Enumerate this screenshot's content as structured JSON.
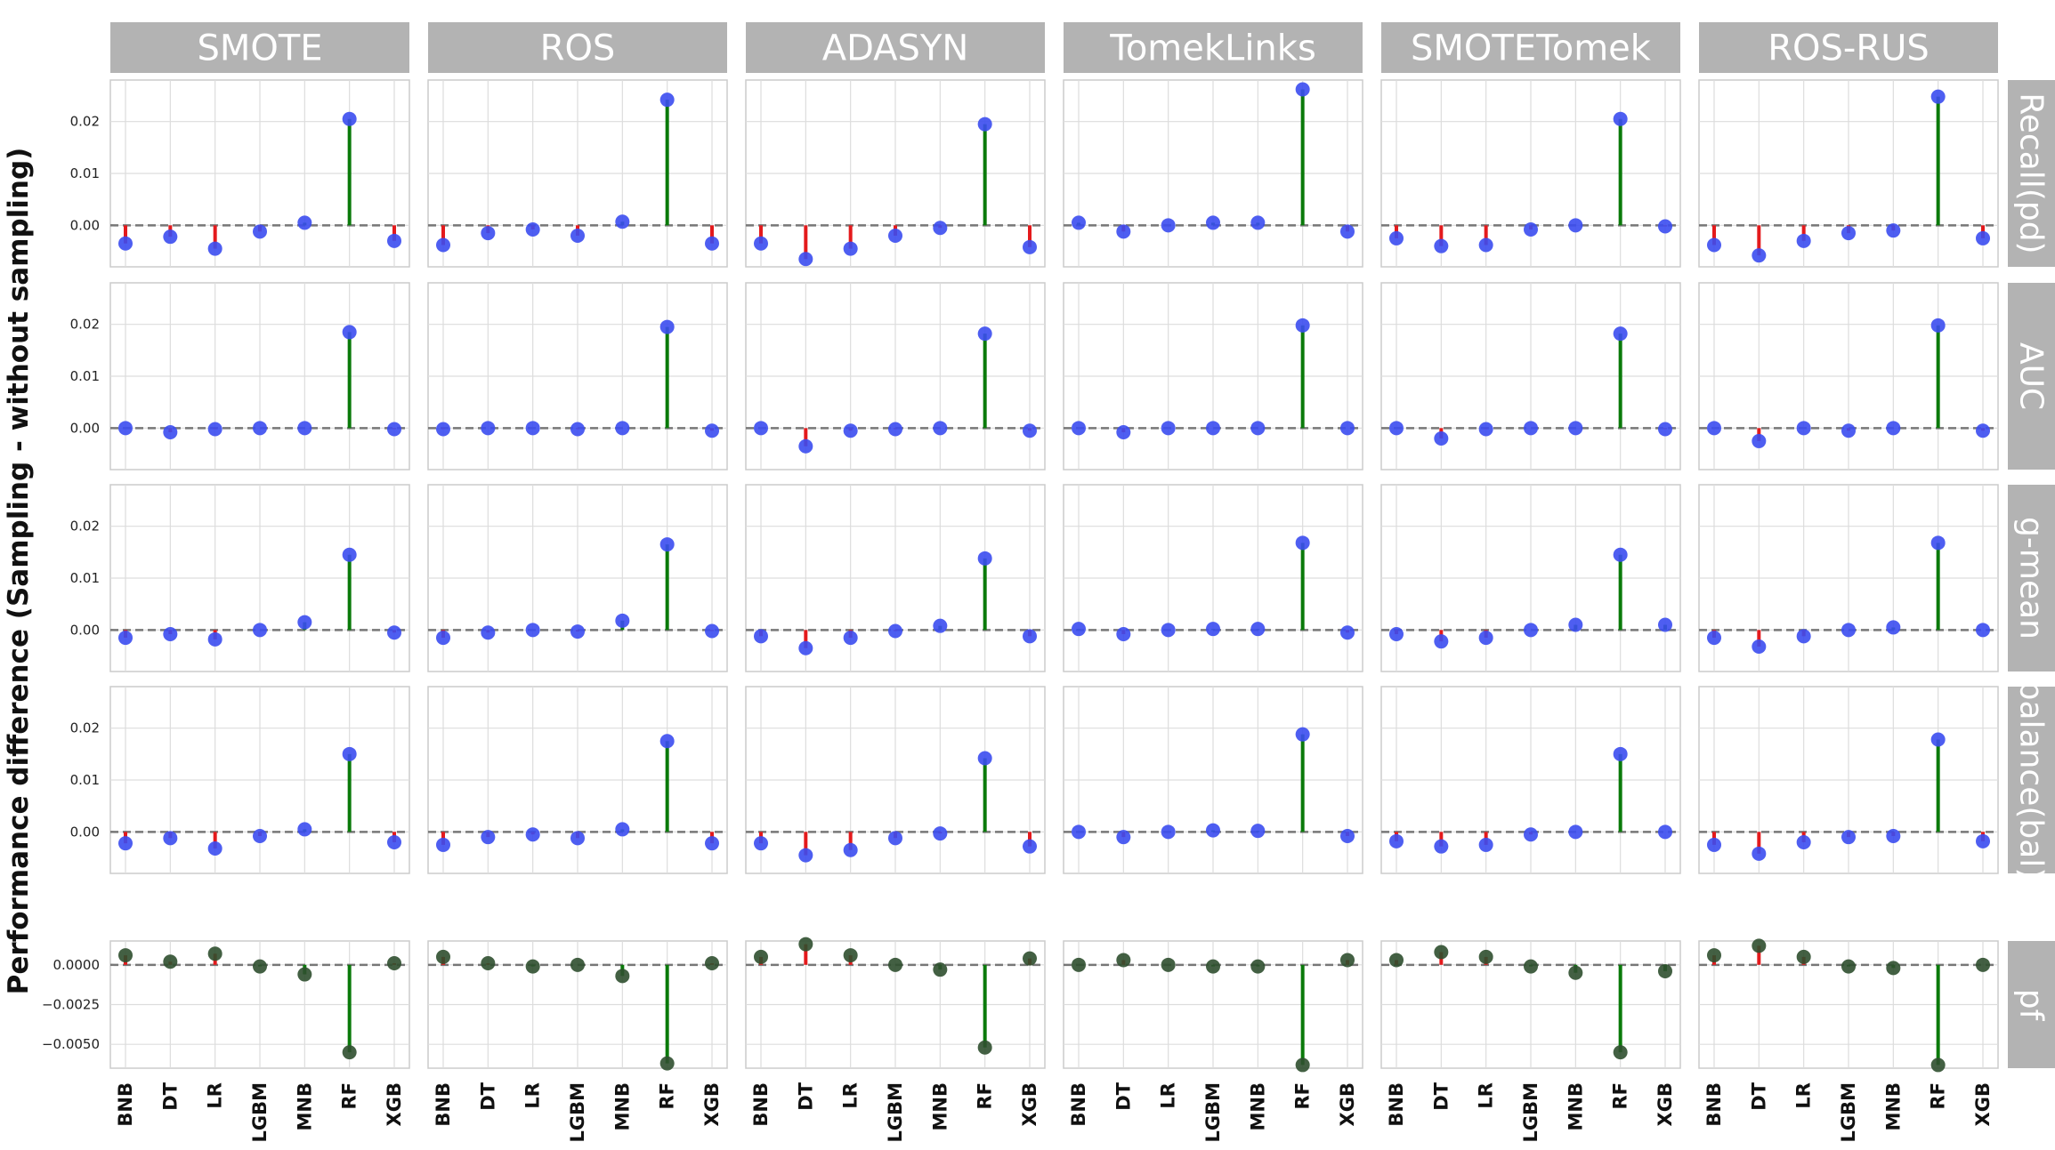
{
  "chart_data": {
    "type": "lollipop",
    "ylabel": "Performance difference (Sampling - without sampling)",
    "columns": [
      "SMOTE",
      "ROS",
      "ADASYN",
      "TomekLinks",
      "SMOTETomek",
      "ROS-RUS"
    ],
    "rows": [
      "Recall(pd)",
      "AUC",
      "g-mean",
      "balance(bal)",
      "pf"
    ],
    "categories": [
      "BNB",
      "DT",
      "LR",
      "LGBM",
      "MNB",
      "RF",
      "XGB"
    ],
    "yticks_main": [
      "0.00",
      "0.01",
      "0.02"
    ],
    "yticks_pf": [
      "0.0000",
      "−0.0025",
      "−0.0050"
    ],
    "ylim_main": [
      -0.008,
      0.028
    ],
    "ylim_pf": [
      -0.0065,
      0.0015
    ],
    "colors": {
      "strip": "#b3b3b3",
      "positive": "#0a7a0a",
      "negative": "#e41a1c",
      "marker_main": "#3b4df0",
      "marker_pf": "#2f4f2f",
      "zero_line": "#777777",
      "grid": "#dddddd"
    },
    "values": {
      "Recall(pd)": {
        "SMOTE": [
          -0.0035,
          -0.0022,
          -0.0045,
          -0.0012,
          0.0005,
          0.0205,
          -0.003
        ],
        "ROS": [
          -0.0038,
          -0.0015,
          -0.0008,
          -0.002,
          0.0007,
          0.0242,
          -0.0035
        ],
        "ADASYN": [
          -0.0035,
          -0.0065,
          -0.0045,
          -0.002,
          -0.0005,
          0.0195,
          -0.0042
        ],
        "TomekLinks": [
          0.0005,
          -0.0012,
          0.0,
          0.0005,
          0.0005,
          0.0262,
          -0.0012
        ],
        "SMOTETomek": [
          -0.0025,
          -0.004,
          -0.0038,
          -0.0008,
          0.0,
          0.0205,
          -0.0002
        ],
        "ROS-RUS": [
          -0.0038,
          -0.0058,
          -0.003,
          -0.0015,
          -0.001,
          0.0248,
          -0.0025
        ]
      },
      "AUC": {
        "SMOTE": [
          0.0,
          -0.0008,
          -0.0002,
          0.0,
          0.0,
          0.0185,
          -0.0002
        ],
        "ROS": [
          -0.0002,
          0.0,
          0.0,
          -0.0002,
          0.0,
          0.0195,
          -0.0005
        ],
        "ADASYN": [
          0.0,
          -0.0035,
          -0.0005,
          -0.0002,
          0.0,
          0.0182,
          -0.0005
        ],
        "TomekLinks": [
          0.0,
          -0.0008,
          0.0,
          0.0,
          0.0,
          0.0198,
          0.0
        ],
        "SMOTETomek": [
          0.0,
          -0.002,
          -0.0002,
          0.0,
          0.0,
          0.0182,
          -0.0002
        ],
        "ROS-RUS": [
          0.0,
          -0.0025,
          0.0,
          -0.0005,
          0.0,
          0.0198,
          -0.0005
        ]
      },
      "g-mean": {
        "SMOTE": [
          -0.0015,
          -0.0008,
          -0.0018,
          0.0,
          0.0015,
          0.0145,
          -0.0005
        ],
        "ROS": [
          -0.0015,
          -0.0005,
          0.0,
          -0.0003,
          0.0018,
          0.0165,
          -0.0002
        ],
        "ADASYN": [
          -0.0012,
          -0.0035,
          -0.0015,
          -0.0002,
          0.0008,
          0.0138,
          -0.0012
        ],
        "TomekLinks": [
          0.0002,
          -0.0008,
          0.0,
          0.0002,
          0.0002,
          0.0168,
          -0.0005
        ],
        "SMOTETomek": [
          -0.0008,
          -0.0022,
          -0.0015,
          0.0,
          0.001,
          0.0145,
          0.001
        ],
        "ROS-RUS": [
          -0.0015,
          -0.0032,
          -0.0012,
          0.0,
          0.0005,
          0.0168,
          0.0
        ]
      },
      "balance(bal)": {
        "SMOTE": [
          -0.0022,
          -0.0012,
          -0.0032,
          -0.0008,
          0.0005,
          0.015,
          -0.002
        ],
        "ROS": [
          -0.0025,
          -0.001,
          -0.0005,
          -0.0012,
          0.0005,
          0.0175,
          -0.0022
        ],
        "ADASYN": [
          -0.0022,
          -0.0045,
          -0.0035,
          -0.0012,
          -0.0003,
          0.0142,
          -0.0028
        ],
        "TomekLinks": [
          0.0,
          -0.001,
          0.0,
          0.0003,
          0.0002,
          0.0188,
          -0.0008
        ],
        "SMOTETomek": [
          -0.0018,
          -0.0028,
          -0.0025,
          -0.0005,
          0.0,
          0.015,
          0.0
        ],
        "ROS-RUS": [
          -0.0025,
          -0.0042,
          -0.002,
          -0.001,
          -0.0008,
          0.0178,
          -0.0018
        ]
      },
      "pf": {
        "SMOTE": [
          0.0006,
          0.0002,
          0.0007,
          -0.0001,
          -0.0006,
          -0.0055,
          0.0001
        ],
        "ROS": [
          0.0005,
          0.0001,
          -0.0001,
          0.0,
          -0.0007,
          -0.0062,
          0.0001
        ],
        "ADASYN": [
          0.0005,
          0.0013,
          0.0006,
          0.0,
          -0.0003,
          -0.0052,
          0.0004
        ],
        "TomekLinks": [
          0.0,
          0.0003,
          0.0,
          -0.0001,
          -0.0001,
          -0.0063,
          0.0003
        ],
        "SMOTETomek": [
          0.0003,
          0.0008,
          0.0005,
          -0.0001,
          -0.0005,
          -0.0055,
          -0.0004
        ],
        "ROS-RUS": [
          0.0006,
          0.0012,
          0.0005,
          -0.0001,
          -0.0002,
          -0.0063,
          0.0
        ]
      }
    }
  }
}
